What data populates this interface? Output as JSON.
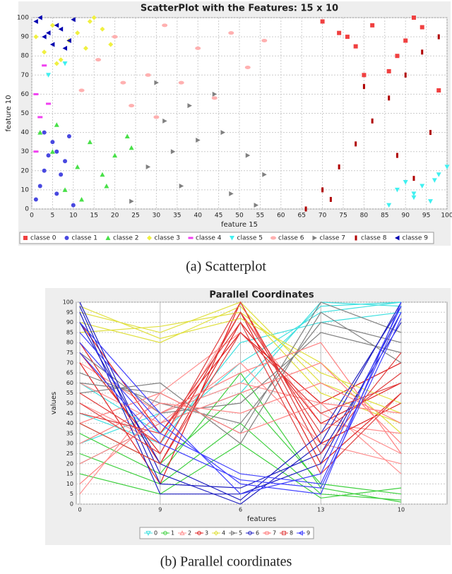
{
  "chart_data": [
    {
      "type": "scatter",
      "title": "ScatterPlot with the Features: 15 x 10",
      "x_label": "feature 15",
      "y_label": "feature 10",
      "caption": "(a) Scatterplot",
      "xlim": [
        0,
        100
      ],
      "xticks": [
        0,
        5,
        10,
        15,
        20,
        25,
        30,
        35,
        40,
        45,
        50,
        55,
        60,
        65,
        70,
        75,
        80,
        85,
        90,
        95,
        100
      ],
      "ylim": [
        0,
        100
      ],
      "yticks": [
        0,
        10,
        20,
        30,
        40,
        50,
        60,
        70,
        80,
        90,
        100
      ],
      "grid": true,
      "series": [
        {
          "name": "classe 0",
          "color": "#f04040",
          "marker": "square",
          "x": [
            70,
            74,
            78,
            82,
            86,
            90,
            94,
            98,
            88,
            80,
            76,
            92
          ],
          "y": [
            98,
            92,
            85,
            96,
            72,
            88,
            95,
            62,
            80,
            70,
            90,
            100
          ]
        },
        {
          "name": "classe 1",
          "color": "#4848e0",
          "marker": "circle",
          "x": [
            1,
            2,
            3,
            4,
            5,
            6,
            7,
            8,
            9,
            10,
            3,
            6
          ],
          "y": [
            5,
            12,
            20,
            28,
            35,
            8,
            18,
            25,
            38,
            2,
            40,
            30
          ]
        },
        {
          "name": "classe 2",
          "color": "#48e048",
          "marker": "triangle-up",
          "x": [
            2,
            5,
            8,
            11,
            14,
            17,
            20,
            23,
            6,
            12,
            18,
            24
          ],
          "y": [
            40,
            30,
            10,
            22,
            35,
            18,
            28,
            38,
            44,
            5,
            12,
            32
          ]
        },
        {
          "name": "classe 3",
          "color": "#f0f040",
          "marker": "diamond",
          "x": [
            1,
            3,
            5,
            7,
            9,
            11,
            13,
            15,
            17,
            19,
            6,
            14
          ],
          "y": [
            90,
            82,
            96,
            78,
            88,
            92,
            84,
            100,
            94,
            86,
            76,
            98
          ]
        },
        {
          "name": "classe 4",
          "color": "#f040f0",
          "marker": "hbar",
          "x": [
            1,
            2,
            3,
            1,
            4
          ],
          "y": [
            60,
            48,
            75,
            30,
            55
          ]
        },
        {
          "name": "classe 5",
          "color": "#40f0f0",
          "marker": "triangle-down",
          "x": [
            86,
            88,
            90,
            92,
            94,
            96,
            98,
            100,
            4,
            8,
            92,
            97
          ],
          "y": [
            2,
            10,
            14,
            6,
            12,
            4,
            18,
            22,
            70,
            76,
            8,
            15
          ]
        },
        {
          "name": "classe 6",
          "color": "#ffb0b0",
          "marker": "ellipse",
          "x": [
            12,
            16,
            20,
            24,
            28,
            32,
            36,
            40,
            44,
            48,
            52,
            56,
            30,
            22
          ],
          "y": [
            62,
            78,
            90,
            54,
            70,
            96,
            66,
            84,
            58,
            92,
            74,
            88,
            48,
            66
          ]
        },
        {
          "name": "classe 7",
          "color": "#808080",
          "marker": "triangle-right",
          "x": [
            24,
            28,
            32,
            36,
            40,
            44,
            48,
            52,
            56,
            30,
            38,
            46,
            54,
            34
          ],
          "y": [
            4,
            22,
            46,
            12,
            36,
            60,
            8,
            28,
            18,
            66,
            54,
            40,
            2,
            30
          ]
        },
        {
          "name": "classe 8",
          "color": "#b00000",
          "marker": "vbar",
          "x": [
            66,
            70,
            74,
            78,
            82,
            86,
            90,
            94,
            98,
            88,
            80,
            96,
            72,
            92
          ],
          "y": [
            0,
            10,
            22,
            34,
            46,
            58,
            70,
            82,
            90,
            28,
            64,
            40,
            5,
            16
          ]
        },
        {
          "name": "classe 9",
          "color": "#0000b0",
          "marker": "triangle-left",
          "x": [
            1,
            3,
            5,
            7,
            9,
            2,
            6,
            8,
            4,
            10
          ],
          "y": [
            98,
            90,
            86,
            94,
            88,
            100,
            96,
            84,
            92,
            99
          ]
        }
      ]
    },
    {
      "type": "parallel",
      "title": "Parallel Coordinates",
      "x_label": "features",
      "y_label": "values",
      "caption": "(b) Parallel coordinates",
      "categories": [
        "0",
        "9",
        "6",
        "13",
        "10"
      ],
      "ylim": [
        0,
        100
      ],
      "yticks": [
        0,
        5,
        10,
        15,
        20,
        25,
        30,
        35,
        40,
        45,
        50,
        55,
        60,
        65,
        70,
        75,
        80,
        85,
        90,
        95,
        100
      ],
      "grid": true,
      "series": [
        {
          "name": "0",
          "color": "#40e0e0",
          "marker": "triangle-down",
          "values": [
            [
              30,
              45,
              60,
              98,
              100
            ],
            [
              45,
              30,
              80,
              90,
              95
            ],
            [
              20,
              40,
              55,
              100,
              98
            ],
            [
              60,
              35,
              70,
              95,
              100
            ]
          ]
        },
        {
          "name": "1",
          "color": "#40d040",
          "marker": "circle",
          "values": [
            [
              25,
              10,
              40,
              5,
              2
            ],
            [
              40,
              20,
              55,
              10,
              5
            ],
            [
              15,
              5,
              30,
              3,
              8
            ],
            [
              35,
              15,
              65,
              8,
              1
            ]
          ]
        },
        {
          "name": "2",
          "color": "#ff9090",
          "marker": "triangle-up",
          "values": [
            [
              60,
              40,
              70,
              30,
              20
            ],
            [
              5,
              55,
              85,
              45,
              25
            ],
            [
              50,
              30,
              95,
              40,
              35
            ],
            [
              70,
              45,
              60,
              50,
              15
            ]
          ]
        },
        {
          "name": "3",
          "color": "#e02020",
          "marker": "circle",
          "values": [
            [
              80,
              20,
              90,
              40,
              60
            ],
            [
              70,
              10,
              100,
              30,
              50
            ],
            [
              90,
              35,
              85,
              50,
              70
            ],
            [
              75,
              25,
              95,
              20,
              55
            ]
          ]
        },
        {
          "name": "4",
          "color": "#e0e040",
          "marker": "diamond",
          "values": [
            [
              95,
              85,
              100,
              60,
              45
            ],
            [
              90,
              80,
              98,
              55,
              40
            ],
            [
              85,
              88,
              95,
              65,
              50
            ],
            [
              98,
              82,
              92,
              70,
              35
            ]
          ]
        },
        {
          "name": "5",
          "color": "#808080",
          "marker": "triangle-right",
          "values": [
            [
              65,
              50,
              40,
              90,
              80
            ],
            [
              55,
              60,
              30,
              95,
              70
            ],
            [
              75,
              45,
              50,
              85,
              75
            ],
            [
              60,
              55,
              35,
              100,
              85
            ]
          ]
        },
        {
          "name": "6",
          "color": "#2020c0",
          "marker": "circle",
          "values": [
            [
              100,
              15,
              0,
              30,
              100
            ],
            [
              95,
              5,
              5,
              20,
              95
            ],
            [
              90,
              20,
              2,
              35,
              98
            ],
            [
              98,
              10,
              8,
              25,
              90
            ]
          ]
        },
        {
          "name": "7",
          "color": "#ff8080",
          "marker": "ellipse",
          "values": [
            [
              30,
              50,
              45,
              60,
              40
            ],
            [
              20,
              40,
              55,
              70,
              30
            ],
            [
              40,
              55,
              35,
              50,
              45
            ],
            [
              10,
              45,
              65,
              80,
              25
            ]
          ]
        },
        {
          "name": "8",
          "color": "#e04040",
          "marker": "square",
          "values": [
            [
              50,
              25,
              95,
              35,
              65
            ],
            [
              45,
              35,
              90,
              15,
              55
            ],
            [
              55,
              30,
              100,
              25,
              75
            ],
            [
              40,
              20,
              85,
              45,
              60
            ]
          ]
        },
        {
          "name": "9",
          "color": "#4040ff",
          "marker": "triangle-left",
          "values": [
            [
              85,
              40,
              10,
              5,
              100
            ],
            [
              80,
              35,
              15,
              10,
              95
            ],
            [
              90,
              45,
              5,
              15,
              98
            ],
            [
              75,
              30,
              12,
              8,
              92
            ]
          ]
        }
      ]
    }
  ]
}
